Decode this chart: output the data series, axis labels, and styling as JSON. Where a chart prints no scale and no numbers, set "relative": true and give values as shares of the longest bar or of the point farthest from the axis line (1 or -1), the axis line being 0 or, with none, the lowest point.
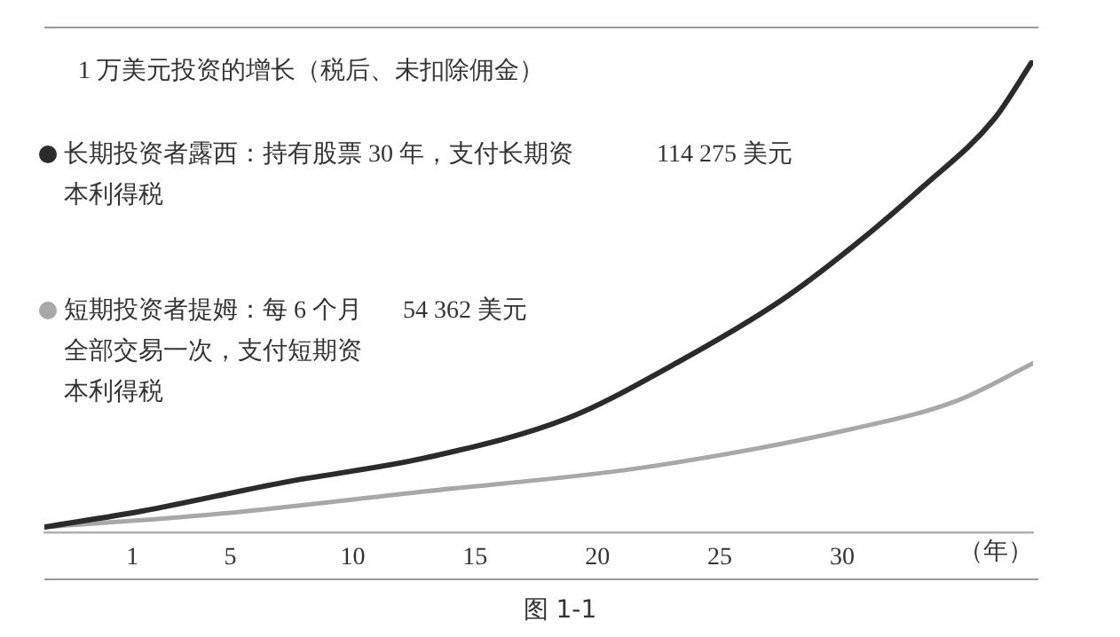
{
  "chart_data": {
    "type": "line",
    "title": "1 万美元投资的增长（税后、未扣除佣金）",
    "xlabel": "（年）",
    "relative": true,
    "x": [
      -2.6,
      1.4,
      7.2,
      13.0,
      18.8,
      23.1,
      27.5,
      30.4,
      33.3,
      36.2,
      37.8
    ],
    "xlim": [
      -2.6,
      37.8
    ],
    "xticks": [
      1,
      5,
      10,
      15,
      20,
      25,
      30
    ],
    "legend": "left",
    "marker": "none",
    "grid": false,
    "series": [
      {
        "name": "长期投资者露西：持有股票 30 年，支付长期资本利得税",
        "color": "#2b2b2b",
        "values": [
          0.011,
          0.045,
          0.106,
          0.158,
          0.242,
          0.355,
          0.491,
          0.604,
          0.732,
          0.875,
          1
        ]
      },
      {
        "name": "短期投资者提姆：每 6 个月全部交易一次，支付短期资本利得税",
        "color": "#a8a8a8",
        "x": [
          -2.6,
          4.3,
          13.0,
          21.7,
          30.4,
          34.7,
          37.8
        ],
        "values": [
          0.011,
          0.038,
          0.087,
          0.136,
          0.219,
          0.279,
          0.358
        ]
      }
    ],
    "annotations": [
      "114 275 美元",
      "54 362 美元",
      "图 1-1"
    ]
  }
}
